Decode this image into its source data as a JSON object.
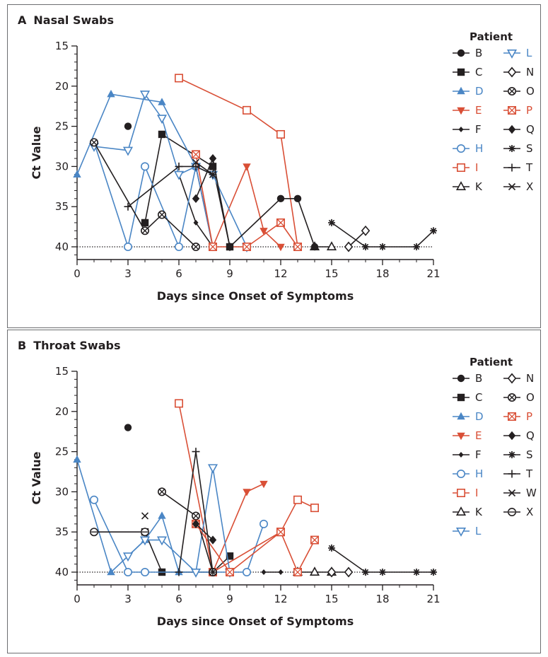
{
  "colors": {
    "black": "#231f20",
    "blue": "#4a86c5",
    "red": "#d94f36"
  },
  "chart_data": [
    {
      "panel_letter": "A",
      "title": "Nasal Swabs",
      "type": "line",
      "xlabel": "Days since Onset of Symptoms",
      "ylabel": "Ct Value",
      "xlim": [
        0,
        21
      ],
      "ylim": [
        15,
        42
      ],
      "y_inverted": true,
      "xticks": [
        0,
        3,
        6,
        9,
        12,
        15,
        18,
        21
      ],
      "yticks": [
        15,
        20,
        25,
        30,
        35,
        40
      ],
      "reference_line_y": 40,
      "legend_title": "Patient",
      "legend_placement": "right",
      "series": [
        {
          "name": "B",
          "color": "black",
          "marker": "circle-filled",
          "points": [
            [
              3,
              25
            ]
          ]
        },
        {
          "name": "C",
          "color": "black",
          "marker": "square-filled",
          "points": [
            [
              4,
              37
            ],
            [
              5,
              26
            ],
            [
              8,
              30
            ],
            [
              9,
              40
            ]
          ]
        },
        {
          "name": "D",
          "color": "blue",
          "marker": "triangle-up-filled",
          "points": [
            [
              0,
              31
            ],
            [
              2,
              21
            ],
            [
              5,
              22
            ],
            [
              7,
              30
            ],
            [
              8,
              40
            ]
          ]
        },
        {
          "name": "E",
          "color": "red",
          "marker": "triangle-down-filled",
          "points": [
            [
              7,
              30
            ],
            [
              8,
              40
            ],
            [
              10,
              30
            ],
            [
              11,
              38
            ],
            [
              12,
              40
            ]
          ]
        },
        {
          "name": "F",
          "color": "black",
          "marker": "diamond-small-filled",
          "points": [
            [
              6,
              31
            ],
            [
              7,
              37
            ],
            [
              8,
              40
            ]
          ]
        },
        {
          "name": "H",
          "color": "blue",
          "marker": "circle-open",
          "points": [
            [
              1,
              27
            ],
            [
              3,
              40
            ],
            [
              4,
              30
            ],
            [
              6,
              40
            ],
            [
              7,
              30
            ],
            [
              8,
              40
            ]
          ]
        },
        {
          "name": "I",
          "color": "red",
          "marker": "square-open",
          "points": [
            [
              6,
              19
            ],
            [
              10,
              23
            ],
            [
              12,
              26
            ],
            [
              13,
              40
            ]
          ]
        },
        {
          "name": "K",
          "color": "black",
          "marker": "triangle-up-open",
          "points": [
            [
              14,
              40
            ],
            [
              15,
              40
            ]
          ]
        },
        {
          "name": "L",
          "color": "blue",
          "marker": "triangle-down-open",
          "points": [
            [
              1,
              27.5
            ],
            [
              3,
              28
            ],
            [
              4,
              21
            ],
            [
              5,
              24
            ],
            [
              6,
              31
            ],
            [
              7,
              30
            ],
            [
              8,
              31
            ],
            [
              10,
              40
            ]
          ]
        },
        {
          "name": "N",
          "color": "black",
          "marker": "diamond-open",
          "points": [
            [
              16,
              40
            ],
            [
              17,
              38
            ]
          ]
        },
        {
          "name": "O",
          "color": "black",
          "marker": "circle-cross",
          "points": [
            [
              1,
              27
            ],
            [
              4,
              38
            ],
            [
              5,
              36
            ],
            [
              7,
              40
            ]
          ]
        },
        {
          "name": "P",
          "color": "red",
          "marker": "square-cross",
          "points": [
            [
              7,
              28.5
            ],
            [
              8,
              40
            ],
            [
              10,
              40
            ],
            [
              12,
              37
            ],
            [
              13,
              40
            ]
          ]
        },
        {
          "name": "Q",
          "color": "black",
          "marker": "diamond-filled",
          "points": [
            [
              7,
              34
            ],
            [
              8,
              29
            ],
            [
              9,
              40
            ]
          ]
        },
        {
          "name": "S",
          "color": "black",
          "marker": "asterisk",
          "points": [
            [
              15,
              37
            ],
            [
              17,
              40
            ],
            [
              18,
              40
            ],
            [
              20,
              40
            ],
            [
              21,
              38
            ]
          ]
        },
        {
          "name": "T",
          "color": "black",
          "marker": "plus",
          "points": [
            [
              3,
              35
            ],
            [
              6,
              30
            ],
            [
              7,
              30
            ],
            [
              8,
              31
            ]
          ]
        },
        {
          "name": "X",
          "color": "black",
          "marker": "x",
          "points": [
            [
              7,
              29.5
            ],
            [
              8,
              31
            ]
          ]
        },
        {
          "name": "",
          "color": "black",
          "marker": "circle-filled",
          "points": [
            [
              9,
              40
            ],
            [
              12,
              34
            ],
            [
              13,
              34
            ],
            [
              14,
              40
            ]
          ]
        }
      ]
    },
    {
      "panel_letter": "B",
      "title": "Throat Swabs",
      "type": "line",
      "xlabel": "Days since Onset of Symptoms",
      "ylabel": "Ct Value",
      "xlim": [
        0,
        21
      ],
      "ylim": [
        15,
        42
      ],
      "y_inverted": true,
      "xticks": [
        0,
        3,
        6,
        9,
        12,
        15,
        18,
        21
      ],
      "yticks": [
        15,
        20,
        25,
        30,
        35,
        40
      ],
      "reference_line_y": 40,
      "legend_title": "Patient",
      "legend_placement": "right",
      "series": [
        {
          "name": "B",
          "color": "black",
          "marker": "circle-filled",
          "points": [
            [
              3,
              22
            ]
          ]
        },
        {
          "name": "C",
          "color": "black",
          "marker": "square-filled",
          "points": [
            [
              4,
              35
            ],
            [
              5,
              40
            ],
            [
              8,
              40
            ],
            [
              9,
              38
            ]
          ]
        },
        {
          "name": "D",
          "color": "blue",
          "marker": "triangle-up-filled",
          "points": [
            [
              0,
              26
            ],
            [
              2,
              40
            ],
            [
              4,
              36
            ],
            [
              5,
              33
            ],
            [
              6,
              40
            ]
          ]
        },
        {
          "name": "E",
          "color": "red",
          "marker": "triangle-down-filled",
          "points": [
            [
              8,
              40
            ],
            [
              10,
              30
            ],
            [
              11,
              29
            ]
          ]
        },
        {
          "name": "F",
          "color": "black",
          "marker": "diamond-small-filled",
          "points": [
            [
              11,
              40
            ],
            [
              12,
              40
            ]
          ]
        },
        {
          "name": "H",
          "color": "blue",
          "marker": "circle-open",
          "points": [
            [
              1,
              31
            ],
            [
              3,
              40
            ],
            [
              4,
              40
            ],
            [
              9,
              40
            ],
            [
              10,
              40
            ],
            [
              11,
              34
            ]
          ]
        },
        {
          "name": "I",
          "color": "red",
          "marker": "square-open",
          "points": [
            [
              6,
              19
            ],
            [
              8,
              40
            ],
            [
              12,
              35
            ],
            [
              13,
              31
            ],
            [
              14,
              32
            ]
          ]
        },
        {
          "name": "K",
          "color": "black",
          "marker": "triangle-up-open",
          "points": [
            [
              13,
              40
            ],
            [
              14,
              40
            ],
            [
              15,
              40
            ]
          ]
        },
        {
          "name": "L",
          "color": "blue",
          "marker": "triangle-down-open",
          "points": [
            [
              3,
              38
            ],
            [
              4,
              36
            ],
            [
              5,
              36
            ],
            [
              7,
              40
            ],
            [
              8,
              27
            ],
            [
              9,
              40
            ]
          ]
        },
        {
          "name": "N",
          "color": "black",
          "marker": "diamond-open",
          "points": [
            [
              15,
              40
            ],
            [
              16,
              40
            ]
          ]
        },
        {
          "name": "O",
          "color": "black",
          "marker": "circle-cross",
          "points": [
            [
              5,
              30
            ],
            [
              7,
              33
            ],
            [
              8,
              40
            ]
          ]
        },
        {
          "name": "P",
          "color": "red",
          "marker": "square-cross",
          "points": [
            [
              7,
              34
            ],
            [
              9,
              40
            ],
            [
              12,
              35
            ],
            [
              13,
              40
            ],
            [
              14,
              36
            ]
          ]
        },
        {
          "name": "Q",
          "color": "black",
          "marker": "diamond-filled",
          "points": [
            [
              7,
              34
            ],
            [
              8,
              36
            ]
          ]
        },
        {
          "name": "S",
          "color": "black",
          "marker": "asterisk",
          "points": [
            [
              15,
              37
            ],
            [
              17,
              40
            ],
            [
              18,
              40
            ],
            [
              20,
              40
            ],
            [
              21,
              40
            ]
          ]
        },
        {
          "name": "T",
          "color": "black",
          "marker": "plus",
          "points": [
            [
              6,
              40
            ],
            [
              7,
              25
            ],
            [
              8,
              40
            ]
          ]
        },
        {
          "name": "W",
          "color": "black",
          "marker": "x",
          "points": [
            [
              4,
              33
            ]
          ]
        },
        {
          "name": "X",
          "color": "black",
          "marker": "circle-minus",
          "points": [
            [
              1,
              35
            ],
            [
              4,
              35
            ]
          ]
        }
      ]
    }
  ]
}
